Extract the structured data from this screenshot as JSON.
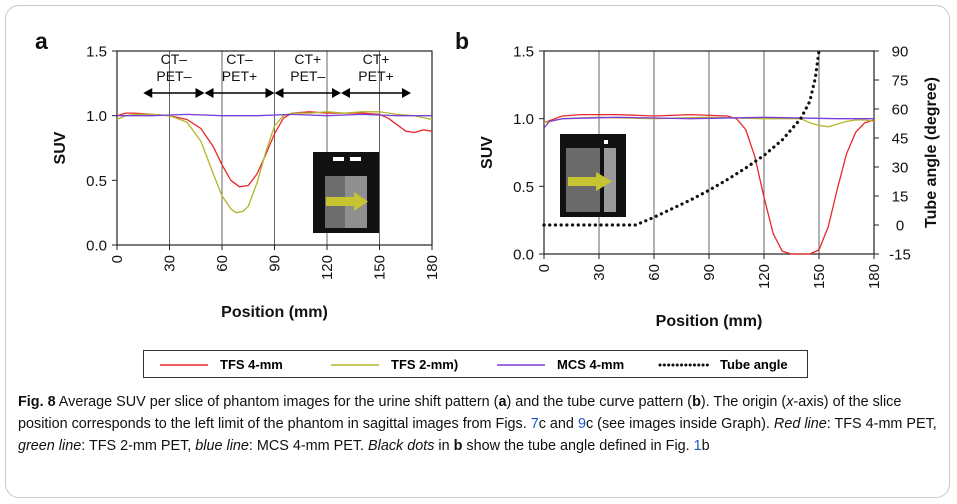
{
  "figure": {
    "panels": [
      {
        "letter": "a"
      },
      {
        "letter": "b"
      }
    ],
    "regions": [
      {
        "line1": "CT–",
        "line2": "PET–",
        "from": 15,
        "to": 50
      },
      {
        "line1": "CT–",
        "line2": "PET+",
        "from": 50,
        "to": 90
      },
      {
        "line1": "CT+",
        "line2": "PET–",
        "from": 90,
        "to": 128
      },
      {
        "line1": "CT+",
        "line2": "PET+",
        "from": 128,
        "to": 168
      }
    ]
  },
  "chart_data": [
    {
      "panel": "a",
      "type": "line",
      "xlabel": "Position (mm)",
      "ylabel": "SUV",
      "xlim": [
        0,
        180
      ],
      "ylim": [
        0,
        1.5
      ],
      "xticks": [
        0,
        30,
        60,
        90,
        120,
        150,
        180
      ],
      "yticks": [
        0.0,
        0.5,
        1.0,
        1.5
      ],
      "ytick_labels": [
        "0.0",
        "0.5",
        "1.0",
        "1.5"
      ],
      "grid": "vertical",
      "series": [
        {
          "name": "TFS 4-mm",
          "color": "#e8282c",
          "x": [
            0,
            5,
            10,
            20,
            30,
            40,
            48,
            55,
            60,
            65,
            70,
            75,
            80,
            85,
            90,
            95,
            100,
            110,
            120,
            130,
            140,
            150,
            155,
            160,
            165,
            170,
            175,
            180
          ],
          "y": [
            1.0,
            1.02,
            1.02,
            1.01,
            1.0,
            0.97,
            0.9,
            0.76,
            0.62,
            0.5,
            0.45,
            0.46,
            0.55,
            0.7,
            0.86,
            0.98,
            1.02,
            1.03,
            1.02,
            1.02,
            1.02,
            1.01,
            0.98,
            0.93,
            0.88,
            0.87,
            0.89,
            0.88
          ]
        },
        {
          "name": "TFS 2-mm)",
          "color": "#b3b52a",
          "x": [
            0,
            5,
            10,
            20,
            30,
            40,
            48,
            55,
            60,
            65,
            68,
            72,
            75,
            80,
            85,
            90,
            95,
            100,
            110,
            120,
            130,
            140,
            150,
            160,
            170,
            180
          ],
          "y": [
            0.97,
            1.0,
            1.01,
            1.01,
            1.0,
            0.95,
            0.8,
            0.55,
            0.38,
            0.28,
            0.25,
            0.26,
            0.3,
            0.48,
            0.72,
            0.92,
            1.0,
            1.02,
            1.02,
            1.03,
            1.02,
            1.03,
            1.03,
            1.01,
            1.0,
            0.97
          ]
        },
        {
          "name": "MCS 4-mm",
          "color": "#7a3fd6",
          "x": [
            0,
            20,
            40,
            60,
            80,
            100,
            120,
            140,
            160,
            180
          ],
          "y": [
            1.0,
            1.0,
            1.01,
            1.0,
            1.0,
            1.01,
            1.0,
            1.01,
            1.0,
            1.0
          ]
        }
      ]
    },
    {
      "panel": "b",
      "type": "line",
      "xlabel": "Position (mm)",
      "ylabel": "SUV",
      "y2label": "Tube angle (degree)",
      "xlim": [
        0,
        180
      ],
      "ylim": [
        0,
        1.5
      ],
      "y2lim": [
        -15,
        90
      ],
      "xticks": [
        0,
        30,
        60,
        90,
        120,
        150,
        180
      ],
      "yticks": [
        0.0,
        0.5,
        1.0,
        1.5
      ],
      "ytick_labels": [
        "0.0",
        "0.5",
        "1.0",
        "1.5"
      ],
      "y2ticks": [
        -15,
        0,
        15,
        30,
        45,
        60,
        75,
        90
      ],
      "grid": "vertical",
      "series": [
        {
          "name": "TFS 4-mm",
          "color": "#e8282c",
          "axis": "left",
          "x": [
            0,
            10,
            20,
            40,
            60,
            80,
            100,
            105,
            110,
            115,
            120,
            125,
            130,
            135,
            140,
            145,
            150,
            155,
            160,
            165,
            170,
            175,
            180
          ],
          "y": [
            0.97,
            1.02,
            1.03,
            1.03,
            1.02,
            1.03,
            1.02,
            1.0,
            0.92,
            0.72,
            0.42,
            0.15,
            0.02,
            0.0,
            0.0,
            0.0,
            0.03,
            0.2,
            0.48,
            0.74,
            0.9,
            0.97,
            0.99
          ]
        },
        {
          "name": "TFS 2-mm)",
          "color": "#b3b52a",
          "axis": "left",
          "x": [
            0,
            10,
            30,
            60,
            90,
            120,
            130,
            140,
            145,
            150,
            155,
            160,
            165,
            170,
            175,
            180
          ],
          "y": [
            0.97,
            1.0,
            1.01,
            1.0,
            1.01,
            1.0,
            1.0,
            1.0,
            0.97,
            0.95,
            0.94,
            0.96,
            0.98,
            0.99,
            0.99,
            0.98
          ]
        },
        {
          "name": "MCS 4-mm",
          "color": "#7a3fd6",
          "axis": "left",
          "x": [
            0,
            3,
            10,
            40,
            80,
            120,
            160,
            180
          ],
          "y": [
            0.93,
            0.98,
            1.0,
            1.01,
            1.0,
            1.01,
            1.0,
            1.0
          ]
        },
        {
          "name": "Tube angle",
          "color": "#111111",
          "axis": "right",
          "style": "dotted",
          "x": [
            0,
            10,
            20,
            30,
            40,
            50,
            60,
            70,
            80,
            90,
            100,
            110,
            120,
            130,
            140,
            145,
            148,
            150
          ],
          "y": [
            0,
            0,
            0,
            0,
            0,
            0,
            4,
            8.5,
            13,
            18,
            23.5,
            29.5,
            36,
            44,
            55,
            64,
            76,
            90
          ]
        }
      ]
    }
  ],
  "legend": [
    {
      "label": "TFS 4-mm",
      "color": "#e8282c",
      "style": "solid"
    },
    {
      "label": "TFS 2-mm)",
      "color": "#b3b52a",
      "style": "solid"
    },
    {
      "label": "MCS 4-mm",
      "color": "#7a3fd6",
      "style": "solid"
    },
    {
      "label": "Tube angle",
      "color": "#111111",
      "style": "dotted"
    }
  ],
  "caption": {
    "fig_label": "Fig. 8",
    "p1": " Average SUV per slice of phantom images for the urine shift pattern (",
    "a": "a",
    "p2": ") and the tube curve pattern (",
    "b": "b",
    "p3": "). The origin (",
    "x_it": "x",
    "p4": "-axis) of the slice position corresponds to the left limit of the phantom in sagittal images from Figs. ",
    "ref1": "7",
    "p5": "c and ",
    "ref2": "9",
    "p6": "c (see images inside Graph). ",
    "red_it": "Red line",
    "p7": ": TFS 4-mm PET, ",
    "green_it": "green line",
    "p8": ": TFS 2-mm PET, ",
    "blue_it": "blue line",
    "p9": ": MCS 4-mm PET. ",
    "black_it": "Black dots",
    "p10": " in ",
    "b2": "b",
    "p11": " show the tube angle defined in Fig. ",
    "ref3": "1",
    "p12": "b"
  }
}
